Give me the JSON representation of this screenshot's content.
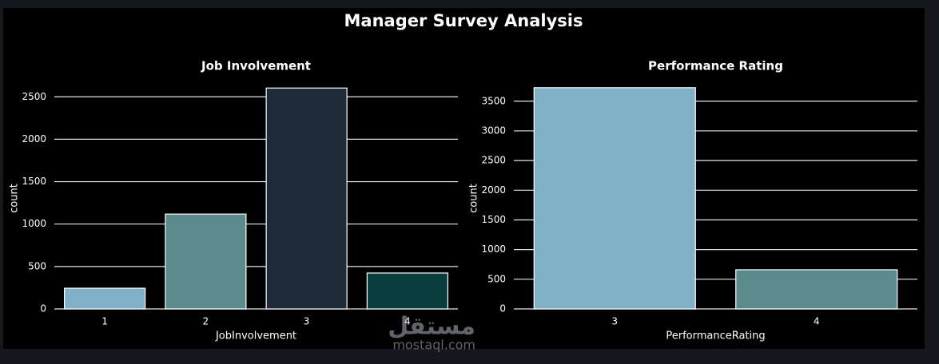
{
  "title": "Manager Survey Analysis",
  "watermark": {
    "arabic": "مستقل",
    "latin": "mostaql.com"
  },
  "chart_data": [
    {
      "type": "bar",
      "title": "Job Involvement",
      "x_label": "JobInvolvement",
      "y_label": "count",
      "categories": [
        "1",
        "2",
        "3",
        "4"
      ],
      "values": [
        244,
        1118,
        2603,
        423
      ],
      "colors": [
        "#7fb0c8",
        "#5a8a8c",
        "#1e2a38",
        "#0a3d40"
      ],
      "ylim": [
        0,
        2700
      ],
      "yticks": [
        0,
        500,
        1000,
        1500,
        2000,
        2500
      ],
      "grid": true
    },
    {
      "type": "bar",
      "title": "Performance Rating",
      "x_label": "PerformanceRating",
      "y_label": "count",
      "categories": [
        "3",
        "4"
      ],
      "values": [
        3728,
        660
      ],
      "colors": [
        "#7fb0c5",
        "#5a8a8c"
      ],
      "ylim": [
        0,
        3860
      ],
      "yticks": [
        0,
        500,
        1000,
        1500,
        2000,
        2500,
        3000,
        3500
      ],
      "grid": true
    }
  ]
}
